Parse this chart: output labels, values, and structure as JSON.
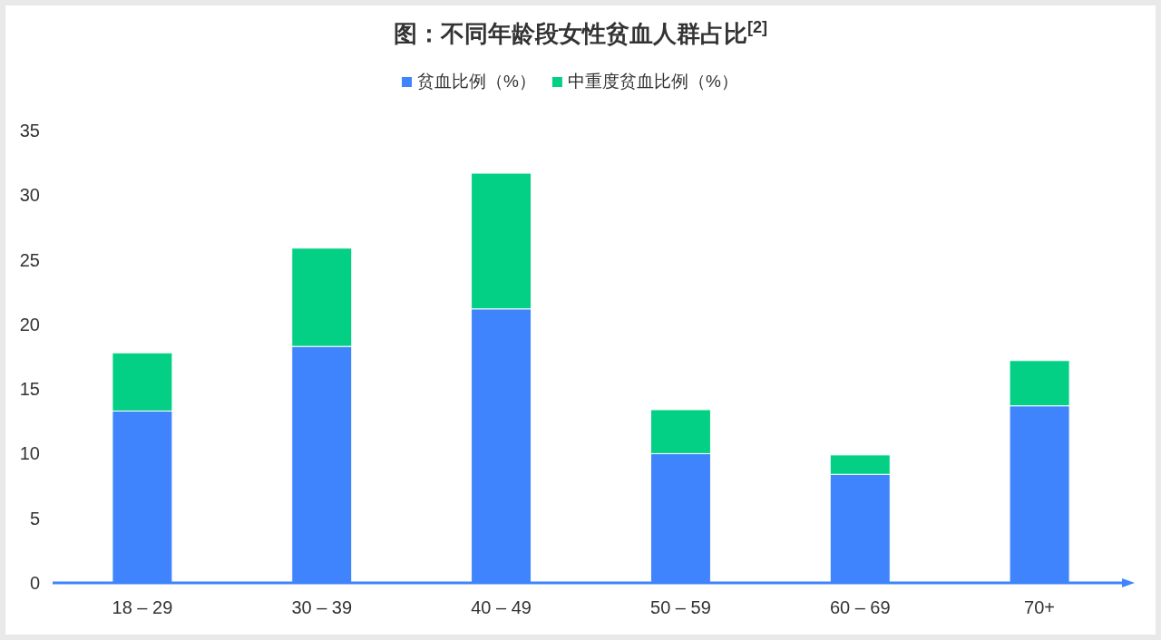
{
  "chart_data": {
    "type": "bar",
    "title": "图：不同年龄段女性贫血人群占比$^{[2]}$",
    "stacked": true,
    "categories": [
      "18 – 29",
      "30 – 39",
      "40 – 49",
      "50 – 59",
      "60 – 69",
      "70+"
    ],
    "series": [
      {
        "name": "贫血比例（%）",
        "color": "#3f84fc",
        "values": [
          13.3,
          18.3,
          21.2,
          10.0,
          8.4,
          13.7
        ]
      },
      {
        "name": "中重度贫血比例（%）",
        "color": "#03cf85",
        "values": [
          4.5,
          7.6,
          10.5,
          3.4,
          1.5,
          3.5
        ]
      }
    ],
    "ylim": [
      0,
      35
    ],
    "yticks": [
      0,
      5,
      10,
      15,
      20,
      25,
      30,
      35
    ],
    "grid": false,
    "legend": "top"
  }
}
